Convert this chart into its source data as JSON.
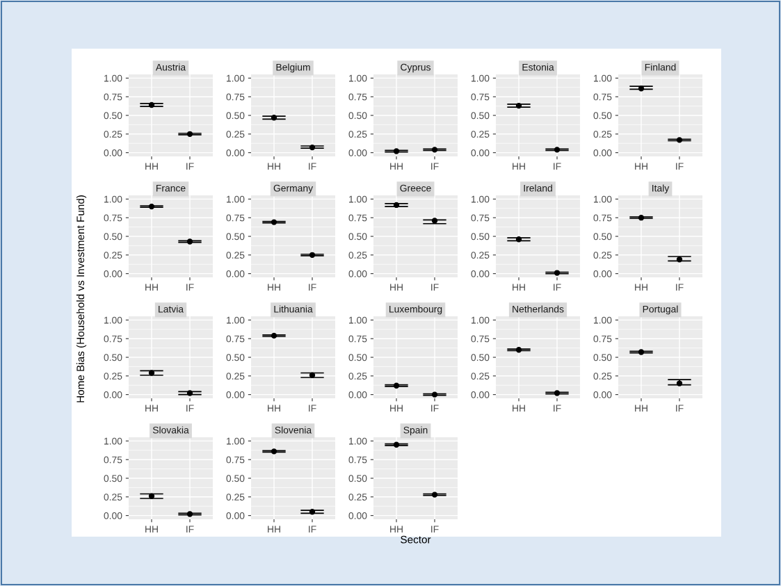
{
  "chart_data": [
    {
      "type": "scatter",
      "title": "Austria",
      "categories": [
        "HH",
        "IF"
      ],
      "series": [
        {
          "color": "#000000",
          "values": [
            0.64,
            0.25
          ],
          "errors": [
            0.02,
            0.01
          ]
        }
      ],
      "ylim": [
        -0.05,
        1.05
      ],
      "yticks": [
        {
          "value": 0,
          "label": "0.00"
        },
        {
          "value": 0.25,
          "label": "0.25"
        },
        {
          "value": 0.5,
          "label": "0.50"
        },
        {
          "value": 0.75,
          "label": "0.75"
        },
        {
          "value": 1,
          "label": "1.00"
        }
      ],
      "grid": true,
      "marker": "circle"
    },
    {
      "type": "scatter",
      "title": "Belgium",
      "categories": [
        "HH",
        "IF"
      ],
      "series": [
        {
          "color": "#000000",
          "values": [
            0.47,
            0.07
          ],
          "errors": [
            0.02,
            [
              0.06,
              0.09
            ]
          ]
        }
      ],
      "ylim": [
        -0.05,
        1.05
      ],
      "yticks": [
        {
          "value": 0,
          "label": "0.00"
        },
        {
          "value": 0.25,
          "label": "0.25"
        },
        {
          "value": 0.5,
          "label": "0.50"
        },
        {
          "value": 0.75,
          "label": "0.75"
        },
        {
          "value": 1,
          "label": "1.00"
        }
      ],
      "grid": true,
      "marker": "circle"
    },
    {
      "type": "scatter",
      "title": "Cyprus",
      "categories": [
        "HH",
        "IF"
      ],
      "series": [
        {
          "color": "#000000",
          "values": [
            0.02,
            0.04
          ],
          "errors": [
            0.01,
            0.01
          ]
        }
      ],
      "ylim": [
        -0.05,
        1.05
      ],
      "yticks": [
        {
          "value": 0,
          "label": "0.00"
        },
        {
          "value": 0.25,
          "label": "0.25"
        },
        {
          "value": 0.5,
          "label": "0.50"
        },
        {
          "value": 0.75,
          "label": "0.75"
        },
        {
          "value": 1,
          "label": "1.00"
        }
      ],
      "grid": true,
      "marker": "circle"
    },
    {
      "type": "scatter",
      "title": "Estonia",
      "categories": [
        "HH",
        "IF"
      ],
      "series": [
        {
          "color": "#000000",
          "values": [
            0.63,
            0.04
          ],
          "errors": [
            0.02,
            0.01
          ]
        }
      ],
      "ylim": [
        -0.05,
        1.05
      ],
      "yticks": [
        {
          "value": 0,
          "label": "0.00"
        },
        {
          "value": 0.25,
          "label": "0.25"
        },
        {
          "value": 0.5,
          "label": "0.50"
        },
        {
          "value": 0.75,
          "label": "0.75"
        },
        {
          "value": 1,
          "label": "1.00"
        }
      ],
      "grid": true,
      "marker": "circle"
    },
    {
      "type": "scatter",
      "title": "Finland",
      "categories": [
        "HH",
        "IF"
      ],
      "series": [
        {
          "color": "#000000",
          "values": [
            0.86,
            0.17
          ],
          "errors": [
            [
              0.85,
              0.89
            ],
            0.01
          ]
        }
      ],
      "ylim": [
        -0.05,
        1.05
      ],
      "yticks": [
        {
          "value": 0,
          "label": "0.00"
        },
        {
          "value": 0.25,
          "label": "0.25"
        },
        {
          "value": 0.5,
          "label": "0.50"
        },
        {
          "value": 0.75,
          "label": "0.75"
        },
        {
          "value": 1,
          "label": "1.00"
        }
      ],
      "grid": true,
      "marker": "circle"
    },
    {
      "type": "scatter",
      "title": "France",
      "categories": [
        "HH",
        "IF"
      ],
      "series": [
        {
          "color": "#000000",
          "values": [
            0.9,
            0.43
          ],
          "errors": [
            0.01,
            0.01
          ]
        }
      ],
      "ylim": [
        -0.05,
        1.05
      ],
      "yticks": [
        {
          "value": 0,
          "label": "0.00"
        },
        {
          "value": 0.25,
          "label": "0.25"
        },
        {
          "value": 0.5,
          "label": "0.50"
        },
        {
          "value": 0.75,
          "label": "0.75"
        },
        {
          "value": 1,
          "label": "1.00"
        }
      ],
      "grid": true,
      "marker": "circle"
    },
    {
      "type": "scatter",
      "title": "Germany",
      "categories": [
        "HH",
        "IF"
      ],
      "series": [
        {
          "color": "#000000",
          "values": [
            0.69,
            0.25
          ],
          "errors": [
            0.01,
            0.01
          ]
        }
      ],
      "ylim": [
        -0.05,
        1.05
      ],
      "yticks": [
        {
          "value": 0,
          "label": "0.00"
        },
        {
          "value": 0.25,
          "label": "0.25"
        },
        {
          "value": 0.5,
          "label": "0.50"
        },
        {
          "value": 0.75,
          "label": "0.75"
        },
        {
          "value": 1,
          "label": "1.00"
        }
      ],
      "grid": true,
      "marker": "circle"
    },
    {
      "type": "scatter",
      "title": "Greece",
      "categories": [
        "HH",
        "IF"
      ],
      "series": [
        {
          "color": "#000000",
          "values": [
            0.92,
            0.71
          ],
          "errors": [
            0.02,
            [
              0.67,
              0.72
            ]
          ]
        }
      ],
      "ylim": [
        -0.05,
        1.05
      ],
      "yticks": [
        {
          "value": 0,
          "label": "0.00"
        },
        {
          "value": 0.25,
          "label": "0.25"
        },
        {
          "value": 0.5,
          "label": "0.50"
        },
        {
          "value": 0.75,
          "label": "0.75"
        },
        {
          "value": 1,
          "label": "1.00"
        }
      ],
      "grid": true,
      "marker": "circle"
    },
    {
      "type": "scatter",
      "title": "Ireland",
      "categories": [
        "HH",
        "IF"
      ],
      "series": [
        {
          "color": "#000000",
          "values": [
            0.46,
            0.01
          ],
          "errors": [
            0.02,
            0.01
          ]
        }
      ],
      "ylim": [
        -0.05,
        1.05
      ],
      "yticks": [
        {
          "value": 0,
          "label": "0.00"
        },
        {
          "value": 0.25,
          "label": "0.25"
        },
        {
          "value": 0.5,
          "label": "0.50"
        },
        {
          "value": 0.75,
          "label": "0.75"
        },
        {
          "value": 1,
          "label": "1.00"
        }
      ],
      "grid": true,
      "marker": "circle"
    },
    {
      "type": "scatter",
      "title": "Italy",
      "categories": [
        "HH",
        "IF"
      ],
      "series": [
        {
          "color": "#000000",
          "values": [
            0.75,
            0.19
          ],
          "errors": [
            0.01,
            [
              0.17,
              0.23
            ]
          ]
        }
      ],
      "ylim": [
        -0.05,
        1.05
      ],
      "yticks": [
        {
          "value": 0,
          "label": "0.00"
        },
        {
          "value": 0.25,
          "label": "0.25"
        },
        {
          "value": 0.5,
          "label": "0.50"
        },
        {
          "value": 0.75,
          "label": "0.75"
        },
        {
          "value": 1,
          "label": "1.00"
        }
      ],
      "grid": true,
      "marker": "circle"
    },
    {
      "type": "scatter",
      "title": "Latvia",
      "ylabel": "Home Bias (Household vs Investment Fund)",
      "categories": [
        "HH",
        "IF"
      ],
      "series": [
        {
          "color": "#000000",
          "values": [
            0.29,
            0.02
          ],
          "errors": [
            [
              0.26,
              0.32
            ],
            0.02
          ]
        }
      ],
      "ylim": [
        -0.05,
        1.05
      ],
      "yticks": [
        {
          "value": 0,
          "label": "0.00"
        },
        {
          "value": 0.25,
          "label": "0.25"
        },
        {
          "value": 0.5,
          "label": "0.50"
        },
        {
          "value": 0.75,
          "label": "0.75"
        },
        {
          "value": 1,
          "label": "1.00"
        }
      ],
      "grid": true,
      "marker": "circle"
    },
    {
      "type": "scatter",
      "title": "Lithuania",
      "categories": [
        "HH",
        "IF"
      ],
      "series": [
        {
          "color": "#000000",
          "values": [
            0.79,
            0.26
          ],
          "errors": [
            0.01,
            [
              0.23,
              0.29
            ]
          ]
        }
      ],
      "ylim": [
        -0.05,
        1.05
      ],
      "yticks": [
        {
          "value": 0,
          "label": "0.00"
        },
        {
          "value": 0.25,
          "label": "0.25"
        },
        {
          "value": 0.5,
          "label": "0.50"
        },
        {
          "value": 0.75,
          "label": "0.75"
        },
        {
          "value": 1,
          "label": "1.00"
        }
      ],
      "grid": true,
      "marker": "circle"
    },
    {
      "type": "scatter",
      "title": "Luxembourg",
      "categories": [
        "HH",
        "IF"
      ],
      "series": [
        {
          "color": "#000000",
          "values": [
            0.12,
            0.0
          ],
          "errors": [
            0.01,
            0.01
          ]
        }
      ],
      "ylim": [
        -0.05,
        1.05
      ],
      "yticks": [
        {
          "value": 0,
          "label": "0.00"
        },
        {
          "value": 0.25,
          "label": "0.25"
        },
        {
          "value": 0.5,
          "label": "0.50"
        },
        {
          "value": 0.75,
          "label": "0.75"
        },
        {
          "value": 1,
          "label": "1.00"
        }
      ],
      "grid": true,
      "marker": "circle"
    },
    {
      "type": "scatter",
      "title": "Netherlands",
      "categories": [
        "HH",
        "IF"
      ],
      "series": [
        {
          "color": "#000000",
          "values": [
            0.6,
            0.02
          ],
          "errors": [
            0.01,
            0.01
          ]
        }
      ],
      "ylim": [
        -0.05,
        1.05
      ],
      "yticks": [
        {
          "value": 0,
          "label": "0.00"
        },
        {
          "value": 0.25,
          "label": "0.25"
        },
        {
          "value": 0.5,
          "label": "0.50"
        },
        {
          "value": 0.75,
          "label": "0.75"
        },
        {
          "value": 1,
          "label": "1.00"
        }
      ],
      "grid": true,
      "marker": "circle"
    },
    {
      "type": "scatter",
      "title": "Portugal",
      "categories": [
        "HH",
        "IF"
      ],
      "series": [
        {
          "color": "#000000",
          "values": [
            0.57,
            0.15
          ],
          "errors": [
            0.01,
            [
              0.13,
              0.2
            ]
          ]
        }
      ],
      "ylim": [
        -0.05,
        1.05
      ],
      "yticks": [
        {
          "value": 0,
          "label": "0.00"
        },
        {
          "value": 0.25,
          "label": "0.25"
        },
        {
          "value": 0.5,
          "label": "0.50"
        },
        {
          "value": 0.75,
          "label": "0.75"
        },
        {
          "value": 1,
          "label": "1.00"
        }
      ],
      "grid": true,
      "marker": "circle"
    },
    {
      "type": "scatter",
      "title": "Slovakia",
      "categories": [
        "HH",
        "IF"
      ],
      "series": [
        {
          "color": "#000000",
          "values": [
            0.26,
            0.02
          ],
          "errors": [
            0.03,
            0.01
          ]
        }
      ],
      "ylim": [
        -0.05,
        1.05
      ],
      "yticks": [
        {
          "value": 0,
          "label": "0.00"
        },
        {
          "value": 0.25,
          "label": "0.25"
        },
        {
          "value": 0.5,
          "label": "0.50"
        },
        {
          "value": 0.75,
          "label": "0.75"
        },
        {
          "value": 1,
          "label": "1.00"
        }
      ],
      "grid": true,
      "marker": "circle"
    },
    {
      "type": "scatter",
      "title": "Slovenia",
      "categories": [
        "HH",
        "IF"
      ],
      "series": [
        {
          "color": "#000000",
          "values": [
            0.86,
            0.05
          ],
          "errors": [
            0.01,
            0.02
          ]
        }
      ],
      "ylim": [
        -0.05,
        1.05
      ],
      "yticks": [
        {
          "value": 0,
          "label": "0.00"
        },
        {
          "value": 0.25,
          "label": "0.25"
        },
        {
          "value": 0.5,
          "label": "0.50"
        },
        {
          "value": 0.75,
          "label": "0.75"
        },
        {
          "value": 1,
          "label": "1.00"
        }
      ],
      "grid": true,
      "marker": "circle"
    },
    {
      "type": "scatter",
      "title": "Spain",
      "xlabel": "Sector",
      "categories": [
        "HH",
        "IF"
      ],
      "series": [
        {
          "color": "#000000",
          "values": [
            0.95,
            0.28
          ],
          "errors": [
            0.01,
            0.01
          ]
        }
      ],
      "ylim": [
        -0.05,
        1.05
      ],
      "yticks": [
        {
          "value": 0,
          "label": "0.00"
        },
        {
          "value": 0.25,
          "label": "0.25"
        },
        {
          "value": 0.5,
          "label": "0.50"
        },
        {
          "value": 0.75,
          "label": "0.75"
        },
        {
          "value": 1,
          "label": "1.00"
        }
      ],
      "grid": true,
      "marker": "circle"
    }
  ]
}
